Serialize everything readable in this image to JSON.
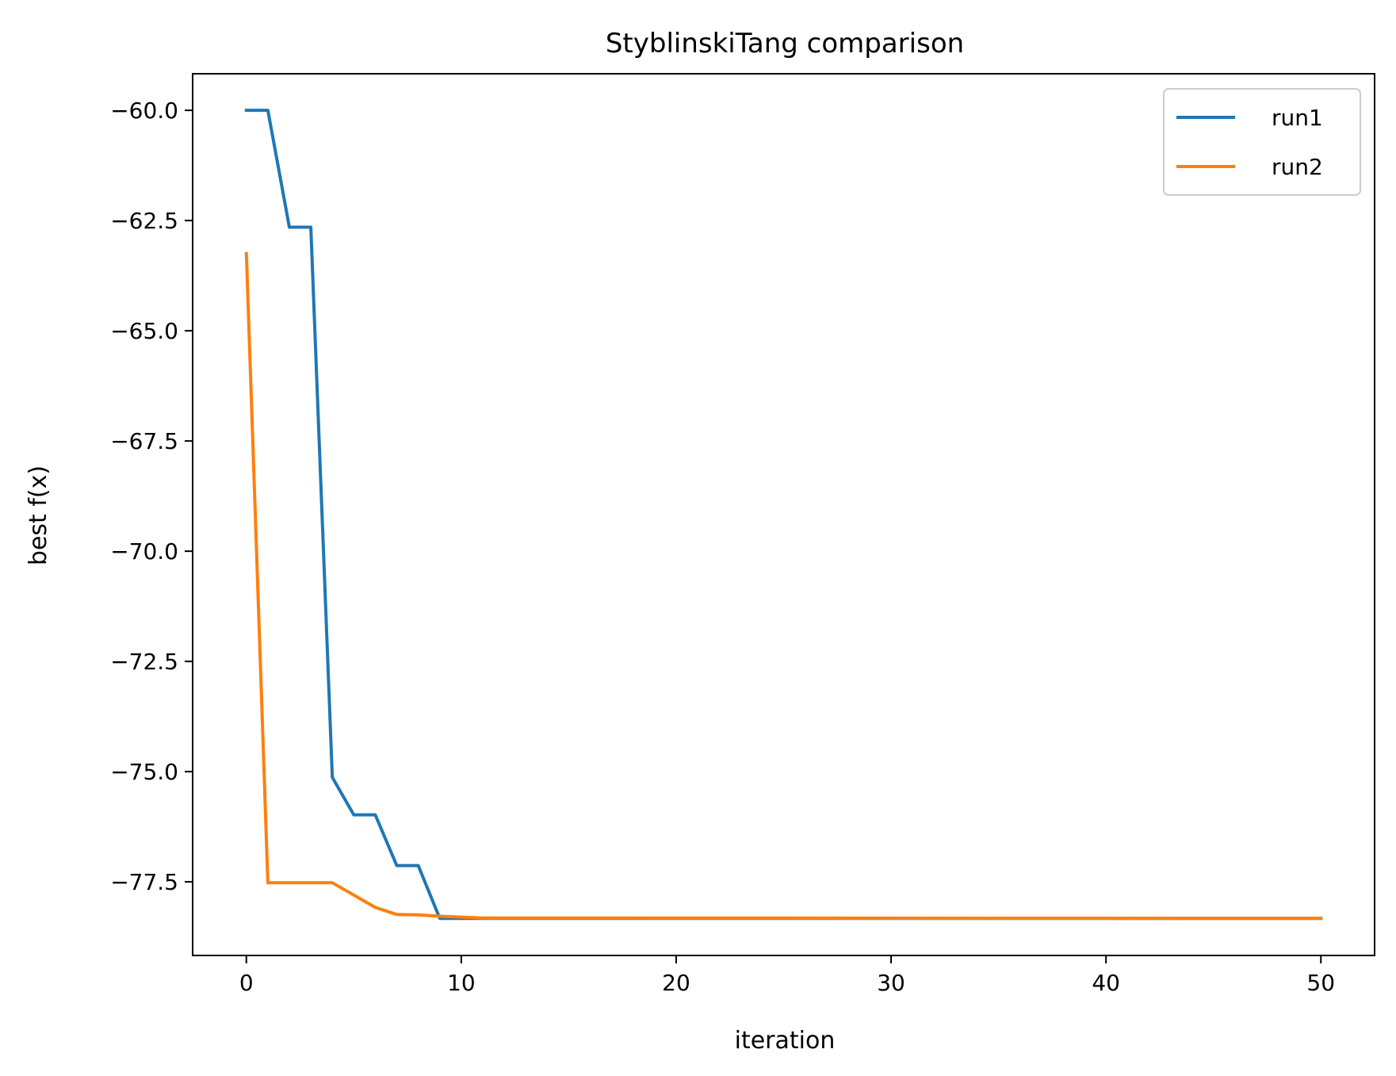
{
  "chart_data": {
    "type": "line",
    "title": "StyblinskiTang comparison",
    "xlabel": "iteration",
    "ylabel": "best f(x)",
    "xlim": [
      -2.5,
      52.5
    ],
    "ylim": [
      -79.17,
      -59.17
    ],
    "xticks": [
      0,
      10,
      20,
      30,
      40,
      50
    ],
    "xtick_labels": [
      "0",
      "10",
      "20",
      "30",
      "40",
      "50"
    ],
    "yticks": [
      -60.0,
      -62.5,
      -65.0,
      -67.5,
      -70.0,
      -72.5,
      -75.0,
      -77.5
    ],
    "ytick_labels": [
      "−60.0",
      "−62.5",
      "−65.0",
      "−67.5",
      "−70.0",
      "−72.5",
      "−75.0",
      "−77.5"
    ],
    "grid": false,
    "legend_position": "top-right",
    "series": [
      {
        "name": "run1",
        "color": "#1f77b4",
        "x": [
          0,
          1,
          2,
          3,
          4,
          5,
          6,
          7,
          8,
          9,
          10,
          11,
          50
        ],
        "y": [
          -60.0,
          -60.0,
          -62.65,
          -62.65,
          -75.13,
          -75.98,
          -75.98,
          -77.13,
          -77.13,
          -78.33,
          -78.33,
          -78.33,
          -78.33
        ]
      },
      {
        "name": "run2",
        "color": "#ff7f0e",
        "x": [
          0,
          1,
          2,
          3,
          4,
          5,
          6,
          7,
          8,
          9,
          10,
          11,
          50
        ],
        "y": [
          -63.25,
          -77.52,
          -77.52,
          -77.52,
          -77.52,
          -77.8,
          -78.08,
          -78.24,
          -78.25,
          -78.28,
          -78.3,
          -78.32,
          -78.33
        ]
      }
    ]
  }
}
